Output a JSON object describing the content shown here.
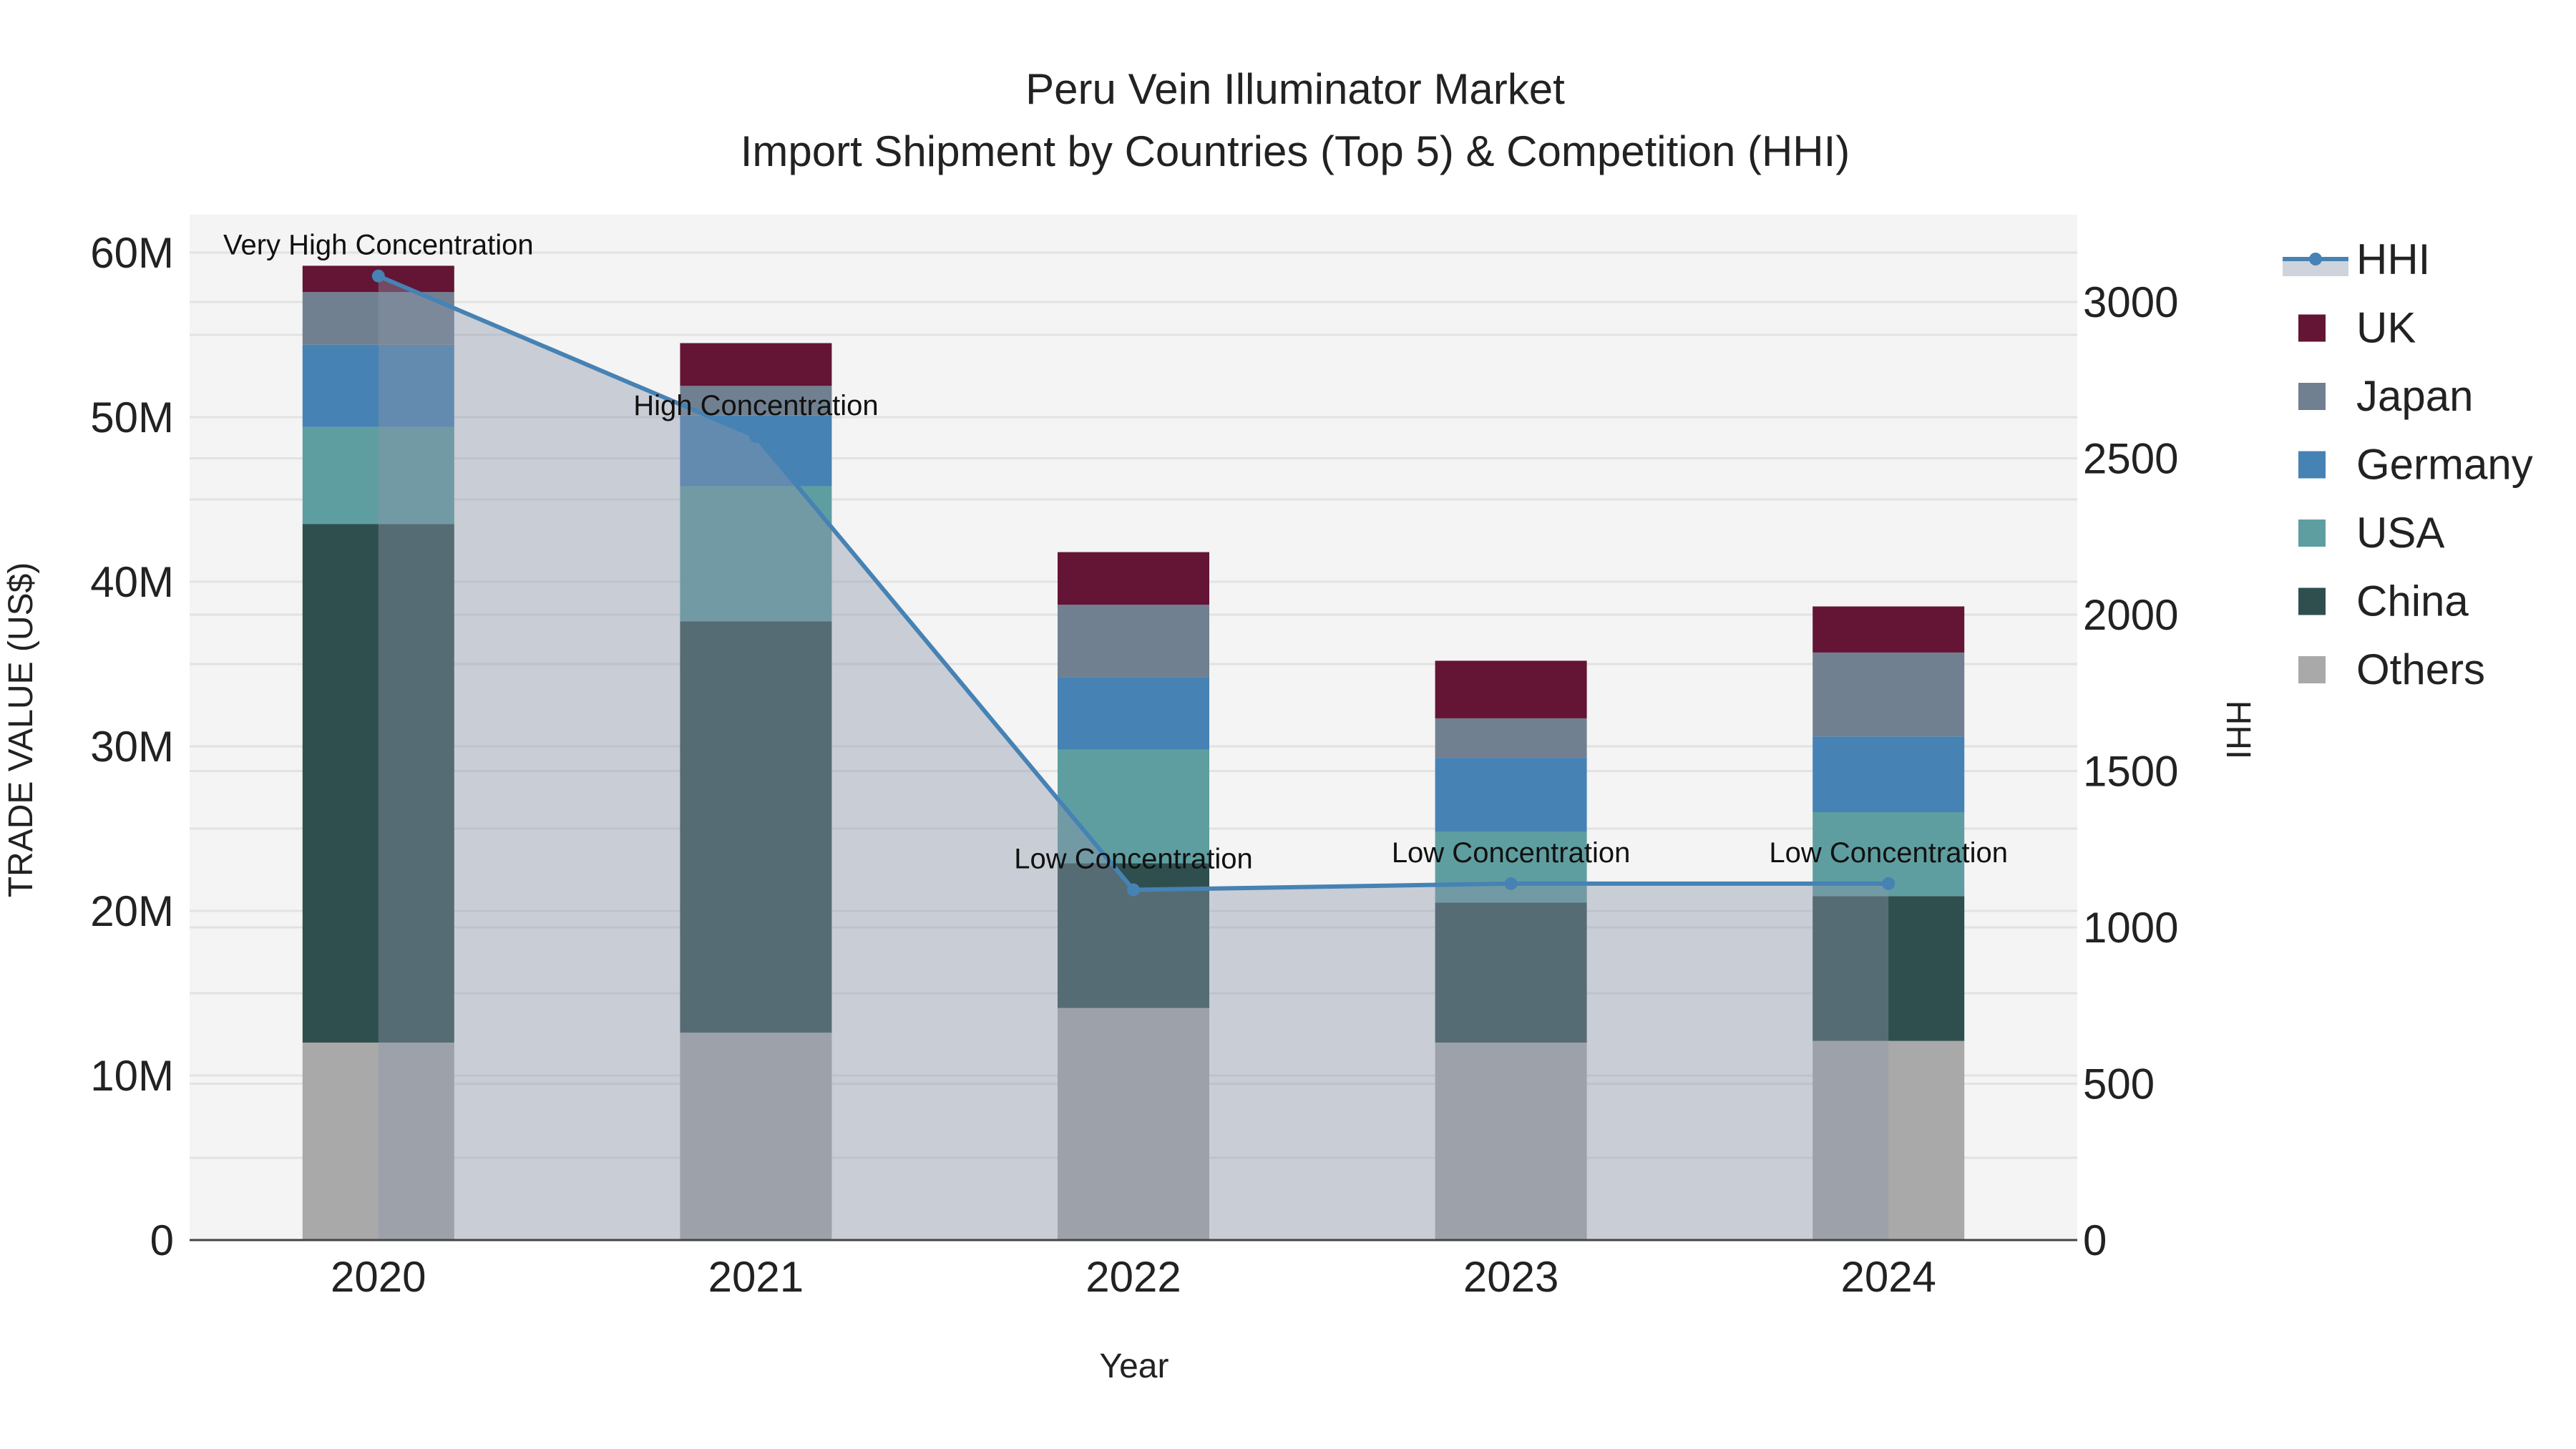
{
  "chart_data": {
    "type": "bar",
    "title": "Peru Vein Illuminator Market",
    "subtitle": "Import Shipment by Countries (Top 5) & Competition (HHI)",
    "xlabel": "Year",
    "ylabel": "TRADE VALUE (US$)",
    "y2label": "HHI",
    "categories": [
      "2020",
      "2021",
      "2022",
      "2023",
      "2024"
    ],
    "ylim": [
      0,
      62
    ],
    "yunit": "M",
    "yticks": [
      0,
      10,
      20,
      30,
      40,
      50,
      60
    ],
    "ytick_labels": [
      "0",
      "10M",
      "20M",
      "30M",
      "40M",
      "50M",
      "60M"
    ],
    "y2lim": [
      0,
      3250
    ],
    "y2ticks": [
      0,
      500,
      1000,
      1500,
      2000,
      2500,
      3000
    ],
    "y2tick_labels": [
      "0",
      "500",
      "1000",
      "1500",
      "2000",
      "2500",
      "3000"
    ],
    "series": [
      {
        "name": "Others",
        "color": "#a9a9a9",
        "values": [
          12.0,
          12.6,
          14.1,
          12.0,
          12.1
        ]
      },
      {
        "name": "China",
        "color": "#2f4f4f",
        "values": [
          31.5,
          25.0,
          8.8,
          8.5,
          8.8
        ]
      },
      {
        "name": "USA",
        "color": "#5f9ea0",
        "values": [
          5.9,
          8.2,
          6.9,
          4.3,
          5.1
        ]
      },
      {
        "name": "Germany",
        "color": "#4682b4",
        "values": [
          5.0,
          4.3,
          4.4,
          4.5,
          4.6
        ]
      },
      {
        "name": "Japan",
        "color": "#708090",
        "values": [
          3.2,
          1.8,
          4.4,
          2.4,
          5.1
        ]
      },
      {
        "name": "UK",
        "color": "#641434",
        "values": [
          1.6,
          2.6,
          3.2,
          3.5,
          2.8
        ]
      }
    ],
    "hhi": {
      "name": "HHI",
      "color": "#4682b4",
      "values": [
        3083,
        2570,
        1120,
        1140,
        1140
      ]
    },
    "annotations": [
      "Very High Concentration",
      "High Concentration",
      "Low Concentration",
      "Low Concentration",
      "Low Concentration"
    ],
    "legend": [
      "HHI",
      "UK",
      "Japan",
      "Germany",
      "USA",
      "China",
      "Others"
    ],
    "legend_position": "right",
    "grid": true
  }
}
